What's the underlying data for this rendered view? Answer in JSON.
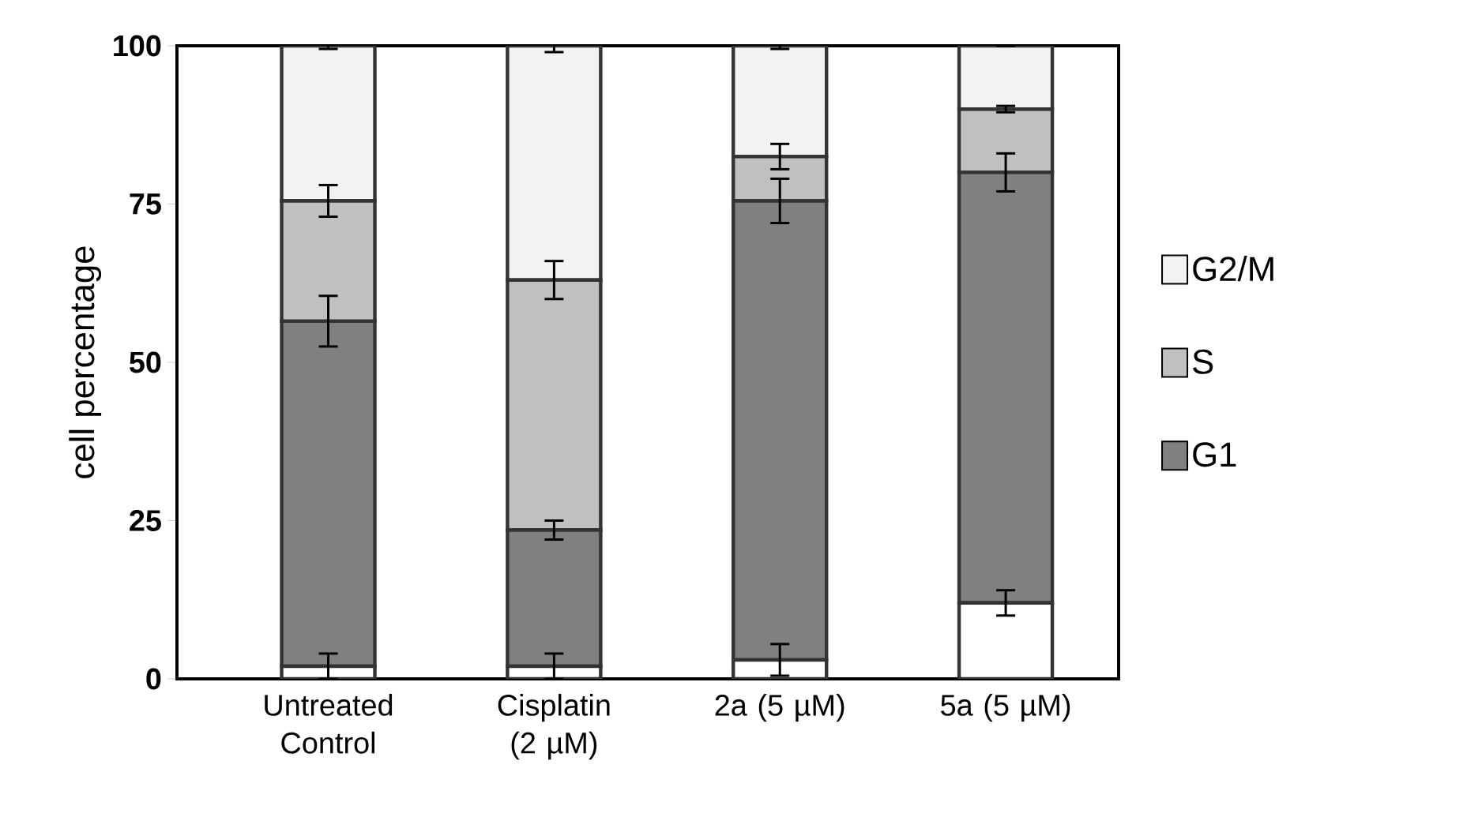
{
  "chart_data": {
    "type": "bar",
    "stacked": true,
    "ylabel": "cell percentage",
    "categories": [
      "Untreated Control",
      "Cisplatin (2 µM)",
      "2a (5 µM)",
      "5a (5 µM)"
    ],
    "series": [
      {
        "color": "#ffffff",
        "values": [
          2,
          2,
          3,
          12
        ],
        "errors": [
          2,
          2,
          2.5,
          2
        ]
      },
      {
        "name": "G1",
        "color": "#808080",
        "values": [
          54.5,
          21.5,
          72.5,
          68
        ],
        "errors": [
          4,
          1.5,
          3.5,
          3
        ]
      },
      {
        "name": "S",
        "color": "#c0c0c0",
        "values": [
          19,
          39.5,
          7,
          10
        ],
        "errors": [
          2.5,
          3,
          2,
          0.5
        ]
      },
      {
        "name": "G2/M",
        "color": "#f2f2f2",
        "values": [
          24.5,
          37,
          17.5,
          10
        ],
        "errors": [
          0.5,
          1,
          0.5,
          0
        ]
      }
    ],
    "ylim": [
      0,
      100
    ],
    "yticks": [
      0,
      25,
      50,
      75,
      100
    ],
    "legend": "right",
    "grid": false
  }
}
